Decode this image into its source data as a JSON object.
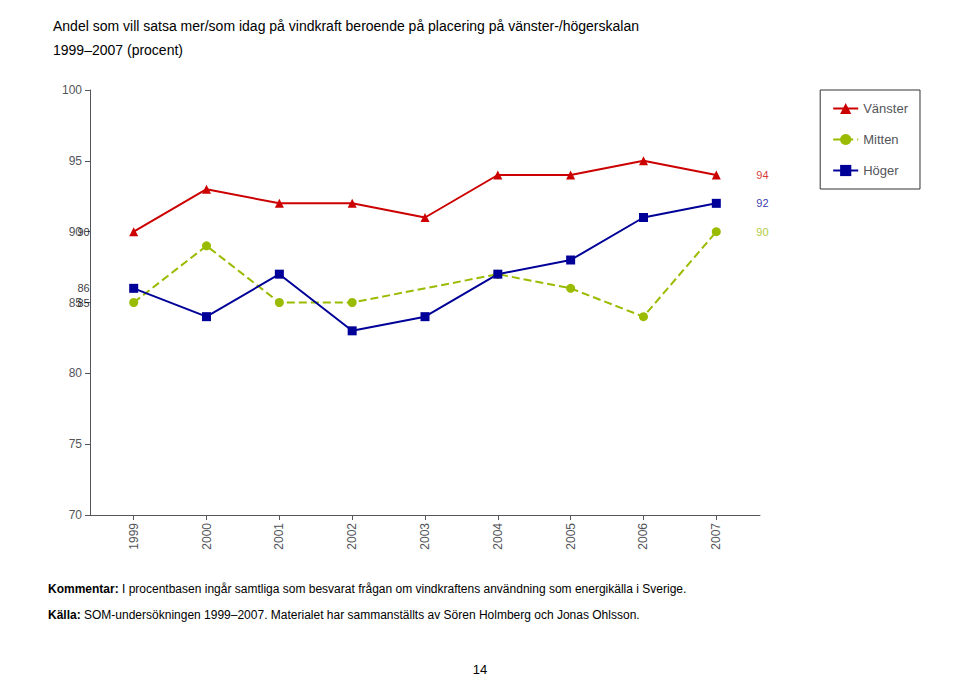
{
  "chart_data": {
    "type": "line",
    "title": "Andel som vill satsa mer/som idag på vindkraft beroende på placering på vänster-/högerskalan",
    "subtitle": "1999–2007 (procent)",
    "x": [
      1999,
      2000,
      2001,
      2002,
      2003,
      2004,
      2005,
      2006,
      2007
    ],
    "series": [
      {
        "name": "Vänster",
        "color": "#cc0000",
        "marker": "triangle",
        "line_style": "solid",
        "values": [
          90,
          93,
          92,
          92,
          91,
          94,
          94,
          95,
          94
        ]
      },
      {
        "name": "Mitten",
        "color": "#99bb00",
        "marker": "circle",
        "line_style": "dashed",
        "x": [
          1999,
          2000,
          2001,
          2002,
          2004,
          2005,
          2006,
          2007
        ],
        "values": [
          85,
          89,
          85,
          85,
          87,
          86,
          84,
          90
        ]
      },
      {
        "name": "Höger",
        "color": "#000099",
        "marker": "square",
        "line_style": "solid",
        "values": [
          86,
          84,
          87,
          83,
          84,
          87,
          88,
          91,
          92
        ]
      }
    ],
    "xlim": [
      1998.4,
      2007.6
    ],
    "xticks": [
      1999,
      2000,
      2001,
      2002,
      2003,
      2004,
      2005,
      2006,
      2007
    ],
    "ylim": [
      70,
      100
    ],
    "yticks": [
      70,
      75,
      80,
      85,
      90,
      95,
      100
    ],
    "grid": false,
    "legend": "right",
    "annotations": [
      {
        "text": "94",
        "series": "Vänster",
        "x": 2007,
        "y": 94,
        "side": "right"
      },
      {
        "text": "90",
        "series": "Mitten",
        "x": 2007,
        "y": 90,
        "side": "right"
      },
      {
        "text": "92",
        "series": "Höger",
        "x": 2007,
        "y": 92,
        "side": "right"
      },
      {
        "text": "90",
        "series": "Vänster",
        "x": 1999,
        "y": 90,
        "side": "left"
      },
      {
        "text": "85",
        "series": "Mitten",
        "x": 1999,
        "y": 85,
        "side": "left"
      },
      {
        "text": "86",
        "series": "Höger",
        "x": 1999,
        "y": 86,
        "side": "left"
      }
    ],
    "footnotes": [
      {
        "label": "Kommentar:",
        "text": " I procentbasen ingår samtliga som besvarat frågan om vindkraftens användning som energikälla i Sverige."
      },
      {
        "label": "Källa:",
        "text": " SOM-undersökningen 1999–2007. Materialet har sammanställts av Sören Holmberg och Jonas Ohlsson."
      }
    ],
    "page_number": "14"
  }
}
